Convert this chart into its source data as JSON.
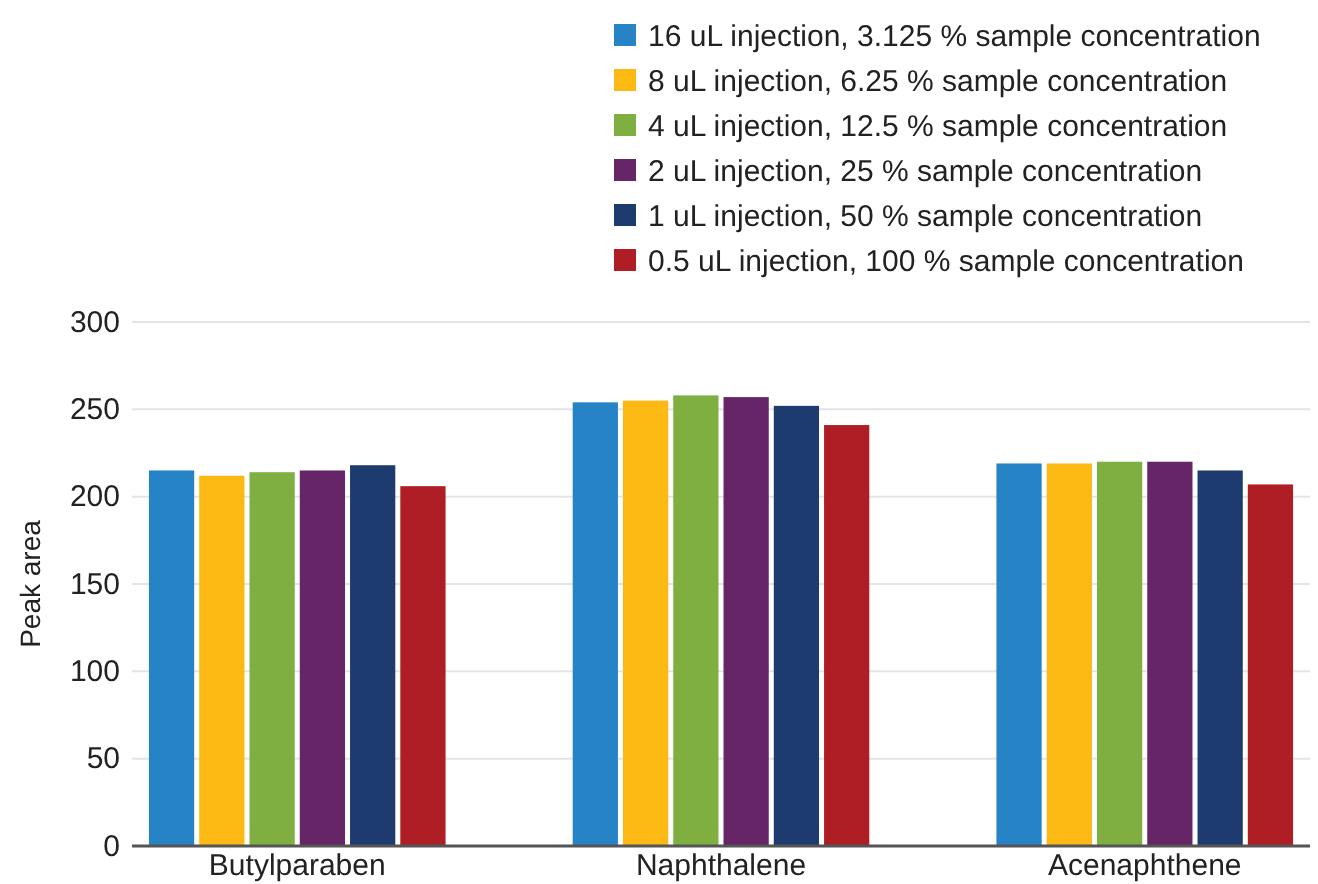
{
  "chart_data": {
    "type": "bar",
    "ylabel": "Peak area",
    "categories": [
      "Butylparaben",
      "Naphthalene",
      "Acenaphthene"
    ],
    "series": [
      {
        "name": "16 uL injection, 3.125 % sample concentration",
        "color": "#2683c6",
        "values": [
          215,
          254,
          219
        ]
      },
      {
        "name": "8 uL injection, 6.25 % sample concentration",
        "color": "#fdb913",
        "values": [
          212,
          255,
          219
        ]
      },
      {
        "name": "4 uL injection, 12.5 % sample concentration",
        "color": "#7fae41",
        "values": [
          214,
          258,
          220
        ]
      },
      {
        "name": "2 uL injection, 25 % sample concentration",
        "color": "#662567",
        "values": [
          215,
          257,
          220
        ]
      },
      {
        "name": "1 uL injection, 50 % sample concentration",
        "color": "#1e3b6f",
        "values": [
          218,
          252,
          215
        ]
      },
      {
        "name": "0.5 uL injection, 100 % sample concentration",
        "color": "#b01e25",
        "values": [
          206,
          241,
          207
        ]
      }
    ],
    "ylim": [
      0,
      300
    ],
    "yticks": [
      0,
      50,
      100,
      150,
      200,
      250,
      300
    ],
    "grid": "y",
    "legend": "top right"
  }
}
